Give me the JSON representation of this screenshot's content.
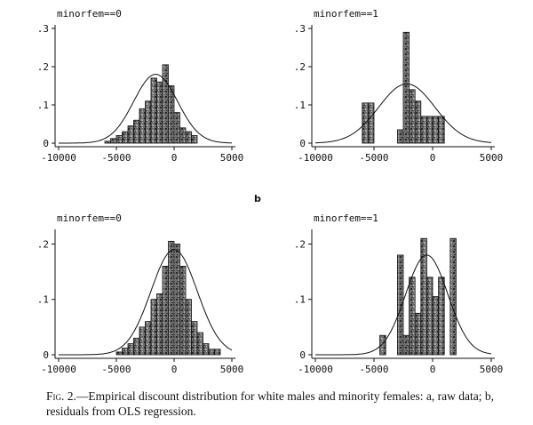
{
  "panel_label_b": "b",
  "caption": {
    "lead": "Fig. 2.",
    "text": "—Empirical discount distribution for white males and minority females: a, raw data; b, residuals from OLS regression."
  },
  "chart_data": [
    {
      "type": "bar",
      "title": "minorfem==0",
      "xlim": [
        -10000,
        5000
      ],
      "ylim": [
        0,
        0.3
      ],
      "xticks": [
        -10000,
        -5000,
        0,
        5000
      ],
      "xtick_labels": [
        "-10000",
        "-5000",
        "0",
        "5000"
      ],
      "yticks": [
        0,
        0.1,
        0.2,
        0.3
      ],
      "ytick_labels": [
        "0",
        ".1",
        ".2",
        ".3"
      ],
      "bin_width": 500,
      "bins": [
        {
          "x": -6000,
          "y": 0.005
        },
        {
          "x": -5500,
          "y": 0.012
        },
        {
          "x": -5000,
          "y": 0.02
        },
        {
          "x": -4500,
          "y": 0.03
        },
        {
          "x": -4000,
          "y": 0.045
        },
        {
          "x": -3500,
          "y": 0.06
        },
        {
          "x": -3000,
          "y": 0.09
        },
        {
          "x": -2500,
          "y": 0.11
        },
        {
          "x": -2000,
          "y": 0.17
        },
        {
          "x": -1500,
          "y": 0.16
        },
        {
          "x": -1000,
          "y": 0.205
        },
        {
          "x": -500,
          "y": 0.15
        },
        {
          "x": 0,
          "y": 0.08
        },
        {
          "x": 500,
          "y": 0.04
        },
        {
          "x": 1000,
          "y": 0.03
        },
        {
          "x": 1500,
          "y": 0.02
        }
      ],
      "normal_curve": {
        "mean": -1600,
        "sd": 1900,
        "peak": 0.18
      }
    },
    {
      "type": "bar",
      "title": "minorfem==1",
      "xlim": [
        -10000,
        5000
      ],
      "ylim": [
        0,
        0.3
      ],
      "xticks": [
        -10000,
        -5000,
        0,
        5000
      ],
      "xtick_labels": [
        "-10000",
        "-5000",
        "0",
        "5000"
      ],
      "yticks": [
        0,
        0.1,
        0.2,
        0.3
      ],
      "ytick_labels": [
        "0",
        ".1",
        ".2",
        ".3"
      ],
      "bin_width": 500,
      "bins": [
        {
          "x": -6000,
          "y": 0.105
        },
        {
          "x": -5500,
          "y": 0.105
        },
        {
          "x": -3000,
          "y": 0.035
        },
        {
          "x": -2500,
          "y": 0.29
        },
        {
          "x": -2000,
          "y": 0.14
        },
        {
          "x": -1500,
          "y": 0.11
        },
        {
          "x": -1000,
          "y": 0.07
        },
        {
          "x": -500,
          "y": 0.07
        },
        {
          "x": 0,
          "y": 0.07
        },
        {
          "x": 500,
          "y": 0.07
        }
      ],
      "normal_curve": {
        "mean": -2200,
        "sd": 2400,
        "peak": 0.155
      }
    },
    {
      "type": "bar",
      "title": "minorfem==0",
      "xlim": [
        -10000,
        5000
      ],
      "ylim": [
        0,
        0.22
      ],
      "xticks": [
        -10000,
        -5000,
        0,
        5000
      ],
      "xtick_labels": [
        "-10000",
        "-5000",
        "0",
        "5000"
      ],
      "yticks": [
        0,
        0.1,
        0.2
      ],
      "ytick_labels": [
        "0",
        ".1",
        ".2"
      ],
      "bin_width": 500,
      "bins": [
        {
          "x": -5000,
          "y": 0.005
        },
        {
          "x": -4500,
          "y": 0.012
        },
        {
          "x": -4000,
          "y": 0.02
        },
        {
          "x": -3500,
          "y": 0.03
        },
        {
          "x": -3000,
          "y": 0.05
        },
        {
          "x": -2500,
          "y": 0.06
        },
        {
          "x": -2000,
          "y": 0.1
        },
        {
          "x": -1500,
          "y": 0.11
        },
        {
          "x": -1000,
          "y": 0.16
        },
        {
          "x": -500,
          "y": 0.205
        },
        {
          "x": 0,
          "y": 0.2
        },
        {
          "x": 500,
          "y": 0.16
        },
        {
          "x": 1000,
          "y": 0.1
        },
        {
          "x": 1500,
          "y": 0.06
        },
        {
          "x": 2000,
          "y": 0.04
        },
        {
          "x": 2500,
          "y": 0.02
        },
        {
          "x": 3000,
          "y": 0.01
        },
        {
          "x": 3500,
          "y": 0.01
        }
      ],
      "normal_curve": {
        "mean": 0,
        "sd": 2000,
        "peak": 0.19
      }
    },
    {
      "type": "bar",
      "title": "minorfem==1",
      "xlim": [
        -10000,
        5000
      ],
      "ylim": [
        0,
        0.22
      ],
      "xticks": [
        -10000,
        -5000,
        0,
        5000
      ],
      "xtick_labels": [
        "-10000",
        "-5000",
        "0",
        "5000"
      ],
      "yticks": [
        0,
        0.1,
        0.2
      ],
      "ytick_labels": [
        "0",
        ".1",
        ".2"
      ],
      "bin_width": 500,
      "bins": [
        {
          "x": -4500,
          "y": 0.035
        },
        {
          "x": -3000,
          "y": 0.18
        },
        {
          "x": -2500,
          "y": 0.035
        },
        {
          "x": -2000,
          "y": 0.14
        },
        {
          "x": -1500,
          "y": 0.075
        },
        {
          "x": -1000,
          "y": 0.21
        },
        {
          "x": -500,
          "y": 0.14
        },
        {
          "x": 0,
          "y": 0.105
        },
        {
          "x": 500,
          "y": 0.14
        },
        {
          "x": 1500,
          "y": 0.21
        }
      ],
      "normal_curve": {
        "mean": -500,
        "sd": 1800,
        "peak": 0.18
      }
    }
  ]
}
